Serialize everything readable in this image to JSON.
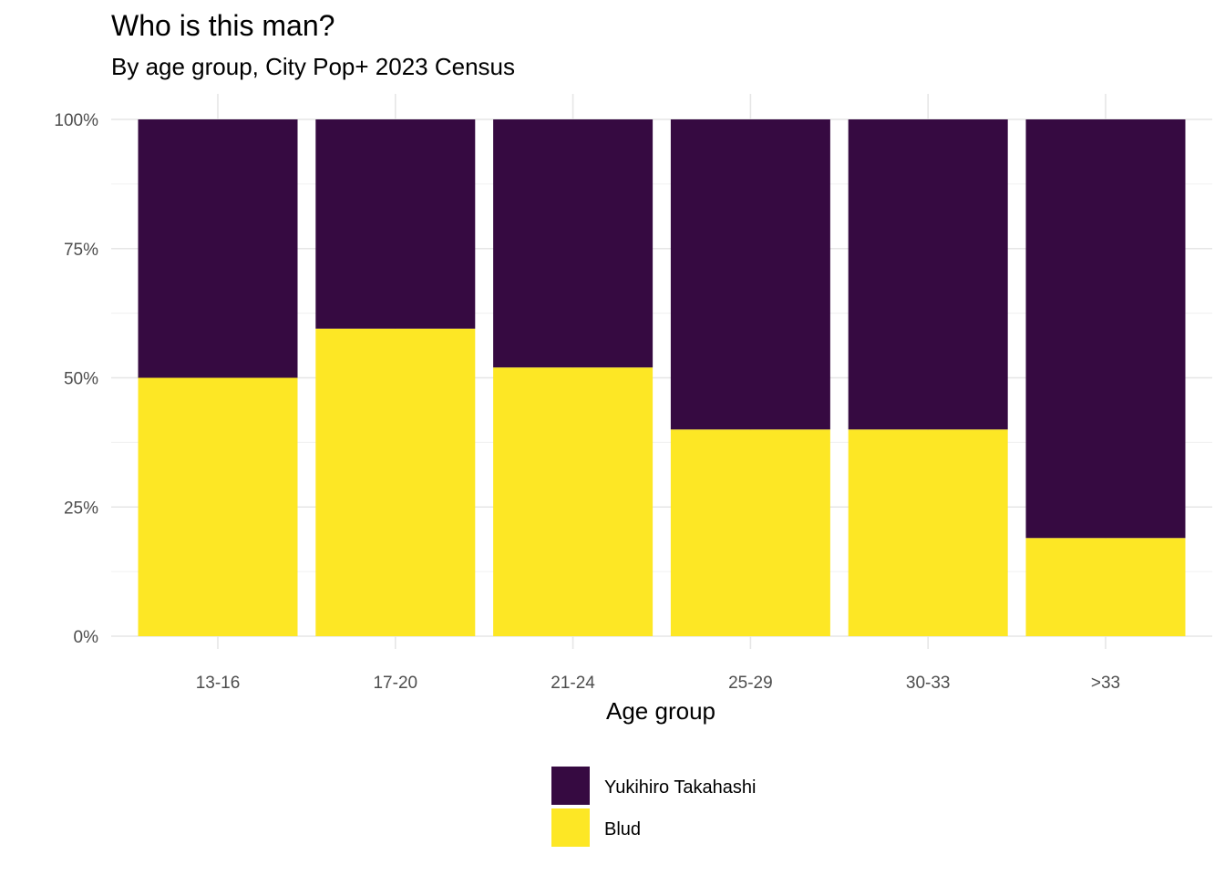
{
  "chart_data": {
    "type": "bar",
    "stacked": true,
    "title": "Who is this man?",
    "subtitle": "By age group, City Pop+ 2023 Census",
    "xlabel": "Age group",
    "ylabel": "",
    "categories": [
      "13-16",
      "17-20",
      "21-24",
      "25-29",
      "30-33",
      ">33"
    ],
    "ylim": [
      0,
      1
    ],
    "yticks": [
      0,
      0.25,
      0.5,
      0.75,
      1
    ],
    "ytick_labels": [
      "0%",
      "25%",
      "50%",
      "75%",
      "100%"
    ],
    "grid": true,
    "legend_position": "bottom",
    "series": [
      {
        "name": "Blud",
        "color": "#FDE725",
        "values": [
          0.5,
          0.595,
          0.52,
          0.4,
          0.4,
          0.19
        ]
      },
      {
        "name": "Yukihiro Takahashi",
        "color": "#360A41",
        "values": [
          0.5,
          0.405,
          0.48,
          0.6,
          0.6,
          0.81
        ]
      }
    ],
    "legend": [
      {
        "name": "Yukihiro Takahashi",
        "color": "#360A41"
      },
      {
        "name": "Blud",
        "color": "#FDE725"
      }
    ]
  }
}
